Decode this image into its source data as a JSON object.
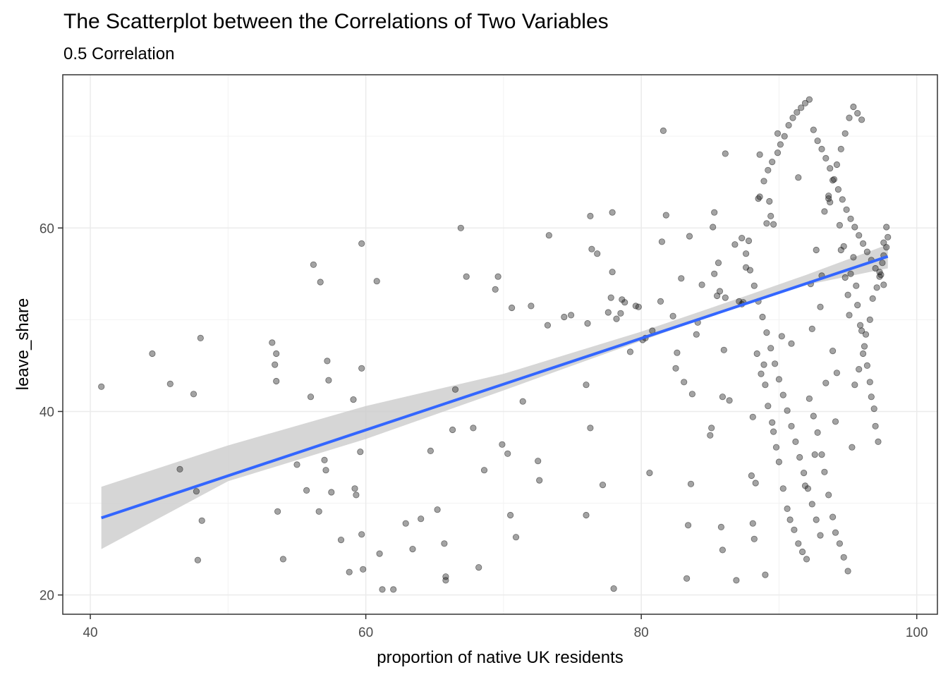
{
  "chart_data": {
    "type": "scatter",
    "title": "The Scatterplot between the Correlations of Two Variables",
    "subtitle": "0.5 Correlation",
    "xlabel": "proportion of native UK residents",
    "ylabel": "leave_share",
    "xlim": [
      38,
      101.5
    ],
    "ylim": [
      17.9,
      76.7
    ],
    "x_ticks": [
      40,
      60,
      80,
      100
    ],
    "y_ticks": [
      20,
      40,
      60
    ],
    "grid": true,
    "point_color": "#1a1a1a",
    "trend_color": "#3366FF",
    "band_color": "#cccccc",
    "trend_line": {
      "x": [
        40.8,
        97.9
      ],
      "y": [
        28.4,
        56.9
      ]
    },
    "confidence_band": {
      "x": [
        40.8,
        50,
        60,
        70,
        80,
        88,
        92,
        97.9
      ],
      "lower": [
        25.0,
        32.4,
        37.0,
        42.3,
        47.7,
        52.0,
        53.8,
        55.6
      ],
      "upper": [
        31.8,
        36.3,
        40.6,
        44.1,
        48.7,
        52.8,
        54.9,
        58.2
      ]
    },
    "points": [
      [
        40.8,
        42.7
      ],
      [
        44.5,
        46.3
      ],
      [
        45.8,
        43.0
      ],
      [
        46.5,
        33.7
      ],
      [
        47.5,
        41.9
      ],
      [
        47.7,
        31.3
      ],
      [
        47.8,
        23.8
      ],
      [
        48.0,
        48.0
      ],
      [
        48.1,
        28.1
      ],
      [
        53.2,
        47.5
      ],
      [
        53.4,
        45.1
      ],
      [
        53.5,
        46.3
      ],
      [
        53.5,
        43.3
      ],
      [
        53.6,
        29.1
      ],
      [
        54.0,
        23.9
      ],
      [
        55.0,
        34.2
      ],
      [
        55.7,
        31.4
      ],
      [
        56.0,
        41.6
      ],
      [
        56.2,
        56.0
      ],
      [
        56.6,
        29.1
      ],
      [
        56.7,
        54.1
      ],
      [
        57.0,
        34.7
      ],
      [
        57.1,
        33.6
      ],
      [
        57.2,
        45.5
      ],
      [
        57.3,
        43.4
      ],
      [
        57.5,
        31.2
      ],
      [
        58.2,
        26.0
      ],
      [
        58.8,
        22.5
      ],
      [
        59.1,
        41.3
      ],
      [
        59.2,
        31.6
      ],
      [
        59.3,
        30.9
      ],
      [
        59.6,
        35.6
      ],
      [
        59.7,
        58.3
      ],
      [
        59.7,
        44.7
      ],
      [
        59.7,
        26.6
      ],
      [
        59.8,
        22.8
      ],
      [
        60.8,
        54.2
      ],
      [
        61.0,
        24.5
      ],
      [
        61.2,
        20.6
      ],
      [
        62.0,
        20.6
      ],
      [
        62.9,
        27.8
      ],
      [
        63.4,
        25.0
      ],
      [
        64.0,
        28.3
      ],
      [
        64.7,
        35.7
      ],
      [
        65.2,
        29.3
      ],
      [
        65.7,
        25.6
      ],
      [
        65.8,
        21.6
      ],
      [
        65.8,
        22.0
      ],
      [
        66.3,
        38.0
      ],
      [
        66.5,
        42.4
      ],
      [
        66.9,
        60.0
      ],
      [
        67.3,
        54.7
      ],
      [
        67.8,
        38.2
      ],
      [
        68.2,
        23.0
      ],
      [
        68.6,
        33.6
      ],
      [
        69.4,
        53.3
      ],
      [
        69.6,
        54.7
      ],
      [
        69.9,
        36.4
      ],
      [
        70.3,
        35.4
      ],
      [
        70.5,
        28.7
      ],
      [
        70.6,
        51.3
      ],
      [
        70.9,
        26.3
      ],
      [
        71.4,
        41.1
      ],
      [
        72.0,
        51.5
      ],
      [
        72.5,
        34.6
      ],
      [
        72.6,
        32.5
      ],
      [
        73.2,
        49.4
      ],
      [
        73.3,
        59.2
      ],
      [
        74.4,
        50.3
      ],
      [
        74.9,
        50.5
      ],
      [
        76.0,
        28.7
      ],
      [
        76.0,
        42.9
      ],
      [
        76.1,
        49.6
      ],
      [
        76.3,
        38.2
      ],
      [
        76.3,
        61.3
      ],
      [
        76.4,
        57.7
      ],
      [
        76.8,
        57.2
      ],
      [
        77.2,
        32.0
      ],
      [
        77.6,
        50.8
      ],
      [
        77.8,
        52.4
      ],
      [
        77.9,
        61.7
      ],
      [
        77.9,
        55.2
      ],
      [
        78.0,
        20.7
      ],
      [
        78.2,
        50.1
      ],
      [
        78.5,
        50.7
      ],
      [
        78.6,
        52.2
      ],
      [
        78.8,
        51.9
      ],
      [
        79.2,
        46.5
      ],
      [
        79.6,
        51.5
      ],
      [
        79.8,
        51.4
      ],
      [
        80.1,
        47.8
      ],
      [
        80.3,
        48.0
      ],
      [
        80.6,
        33.3
      ],
      [
        80.8,
        48.8
      ],
      [
        81.4,
        52.0
      ],
      [
        81.5,
        58.5
      ],
      [
        81.6,
        70.6
      ],
      [
        81.8,
        61.4
      ],
      [
        82.3,
        50.4
      ],
      [
        82.5,
        44.7
      ],
      [
        82.6,
        46.4
      ],
      [
        82.9,
        54.5
      ],
      [
        83.1,
        43.2
      ],
      [
        83.3,
        21.8
      ],
      [
        83.4,
        27.6
      ],
      [
        83.5,
        59.1
      ],
      [
        83.6,
        32.1
      ],
      [
        83.7,
        41.9
      ],
      [
        84.0,
        48.4
      ],
      [
        84.1,
        49.7
      ],
      [
        84.4,
        53.8
      ],
      [
        85.0,
        37.4
      ],
      [
        85.1,
        38.2
      ],
      [
        85.2,
        60.1
      ],
      [
        85.3,
        61.7
      ],
      [
        85.3,
        55.0
      ],
      [
        85.5,
        52.6
      ],
      [
        85.6,
        56.2
      ],
      [
        85.7,
        53.1
      ],
      [
        85.8,
        27.4
      ],
      [
        85.9,
        24.9
      ],
      [
        85.9,
        41.6
      ],
      [
        86.0,
        46.7
      ],
      [
        86.1,
        52.4
      ],
      [
        86.1,
        68.1
      ],
      [
        86.4,
        41.2
      ],
      [
        86.8,
        58.2
      ],
      [
        86.9,
        21.6
      ],
      [
        87.1,
        52.0
      ],
      [
        87.3,
        51.7
      ],
      [
        87.4,
        51.9
      ],
      [
        87.6,
        55.7
      ],
      [
        87.8,
        58.6
      ],
      [
        88.0,
        33.0
      ],
      [
        88.1,
        39.4
      ],
      [
        88.1,
        27.8
      ],
      [
        88.2,
        26.1
      ],
      [
        88.3,
        32.2
      ],
      [
        88.5,
        63.2
      ],
      [
        88.6,
        63.4
      ],
      [
        88.6,
        68.0
      ],
      [
        88.9,
        45.1
      ],
      [
        89.0,
        22.2
      ],
      [
        89.1,
        60.5
      ],
      [
        89.3,
        62.9
      ],
      [
        89.4,
        61.3
      ],
      [
        89.6,
        60.4
      ],
      [
        89.6,
        37.8
      ],
      [
        89.9,
        70.3
      ],
      [
        90.2,
        48.2
      ],
      [
        90.9,
        47.4
      ],
      [
        91.4,
        65.5
      ],
      [
        91.9,
        31.9
      ],
      [
        92.3,
        53.9
      ],
      [
        92.4,
        49.0
      ],
      [
        92.6,
        35.3
      ],
      [
        92.7,
        57.6
      ],
      [
        93.0,
        51.4
      ],
      [
        93.1,
        54.8
      ],
      [
        93.4,
        43.1
      ],
      [
        93.6,
        63.2
      ],
      [
        93.7,
        62.8
      ],
      [
        93.9,
        46.6
      ],
      [
        94.1,
        38.9
      ],
      [
        94.2,
        44.2
      ],
      [
        94.4,
        60.3
      ],
      [
        94.5,
        57.6
      ],
      [
        94.7,
        58.0
      ],
      [
        94.8,
        54.6
      ],
      [
        95.0,
        52.7
      ],
      [
        95.1,
        50.5
      ],
      [
        95.2,
        55.0
      ],
      [
        95.4,
        56.8
      ],
      [
        95.6,
        53.7
      ],
      [
        95.7,
        51.6
      ],
      [
        95.9,
        49.4
      ],
      [
        96.0,
        48.8
      ],
      [
        96.2,
        47.1
      ],
      [
        96.4,
        45.0
      ],
      [
        96.6,
        43.2
      ],
      [
        96.7,
        41.6
      ],
      [
        96.9,
        40.3
      ],
      [
        97.0,
        38.4
      ],
      [
        97.2,
        36.7
      ],
      [
        97.4,
        54.9
      ],
      [
        97.5,
        56.2
      ],
      [
        97.6,
        58.4
      ],
      [
        97.8,
        60.1
      ],
      [
        97.9,
        59.0
      ],
      [
        88.4,
        46.3
      ],
      [
        88.7,
        44.1
      ],
      [
        89.0,
        42.9
      ],
      [
        89.2,
        40.6
      ],
      [
        89.5,
        38.8
      ],
      [
        89.8,
        36.1
      ],
      [
        90.0,
        34.5
      ],
      [
        90.3,
        31.6
      ],
      [
        90.6,
        29.4
      ],
      [
        90.8,
        28.2
      ],
      [
        91.1,
        27.1
      ],
      [
        91.4,
        25.6
      ],
      [
        91.7,
        24.7
      ],
      [
        92.0,
        23.9
      ],
      [
        92.2,
        41.4
      ],
      [
        92.5,
        39.5
      ],
      [
        92.8,
        37.7
      ],
      [
        93.1,
        35.3
      ],
      [
        93.3,
        33.4
      ],
      [
        93.6,
        30.9
      ],
      [
        93.9,
        28.5
      ],
      [
        94.1,
        26.8
      ],
      [
        94.4,
        25.6
      ],
      [
        94.7,
        24.1
      ],
      [
        95.0,
        22.6
      ],
      [
        95.3,
        36.1
      ],
      [
        95.5,
        42.9
      ],
      [
        95.8,
        44.6
      ],
      [
        96.1,
        46.3
      ],
      [
        96.3,
        48.4
      ],
      [
        96.6,
        50.0
      ],
      [
        96.8,
        52.3
      ],
      [
        97.1,
        53.5
      ],
      [
        97.3,
        55.2
      ],
      [
        97.6,
        57.0
      ],
      [
        97.8,
        57.9
      ],
      [
        88.9,
        65.1
      ],
      [
        89.2,
        66.3
      ],
      [
        89.5,
        67.2
      ],
      [
        89.9,
        68.2
      ],
      [
        90.1,
        69.1
      ],
      [
        90.4,
        70.0
      ],
      [
        90.7,
        71.2
      ],
      [
        91.0,
        72.0
      ],
      [
        91.3,
        72.6
      ],
      [
        91.6,
        73.1
      ],
      [
        91.9,
        73.6
      ],
      [
        92.2,
        74.0
      ],
      [
        92.5,
        70.7
      ],
      [
        92.8,
        69.5
      ],
      [
        93.1,
        68.6
      ],
      [
        93.4,
        67.6
      ],
      [
        93.7,
        66.5
      ],
      [
        94.0,
        65.3
      ],
      [
        94.3,
        64.2
      ],
      [
        94.6,
        63.1
      ],
      [
        94.9,
        62.0
      ],
      [
        95.2,
        61.0
      ],
      [
        95.5,
        60.1
      ],
      [
        95.8,
        59.2
      ],
      [
        96.1,
        58.3
      ],
      [
        96.4,
        57.4
      ],
      [
        96.7,
        56.5
      ],
      [
        97.0,
        55.6
      ],
      [
        97.3,
        54.7
      ],
      [
        97.6,
        53.8
      ],
      [
        87.3,
        58.9
      ],
      [
        87.6,
        57.2
      ],
      [
        87.9,
        55.4
      ],
      [
        88.2,
        53.7
      ],
      [
        88.5,
        52.0
      ],
      [
        88.8,
        50.3
      ],
      [
        89.1,
        48.6
      ],
      [
        89.4,
        46.9
      ],
      [
        89.7,
        45.2
      ],
      [
        90.0,
        43.5
      ],
      [
        90.3,
        41.8
      ],
      [
        90.6,
        40.1
      ],
      [
        90.9,
        38.4
      ],
      [
        91.2,
        36.7
      ],
      [
        91.5,
        35.0
      ],
      [
        91.8,
        33.3
      ],
      [
        92.1,
        31.6
      ],
      [
        92.4,
        29.9
      ],
      [
        92.7,
        28.2
      ],
      [
        93.0,
        26.5
      ],
      [
        93.3,
        61.8
      ],
      [
        93.6,
        63.5
      ],
      [
        93.9,
        65.2
      ],
      [
        94.2,
        66.9
      ],
      [
        94.5,
        68.6
      ],
      [
        94.8,
        70.3
      ],
      [
        95.1,
        72.0
      ],
      [
        95.4,
        73.2
      ],
      [
        95.7,
        72.5
      ],
      [
        96.0,
        71.8
      ]
    ]
  }
}
